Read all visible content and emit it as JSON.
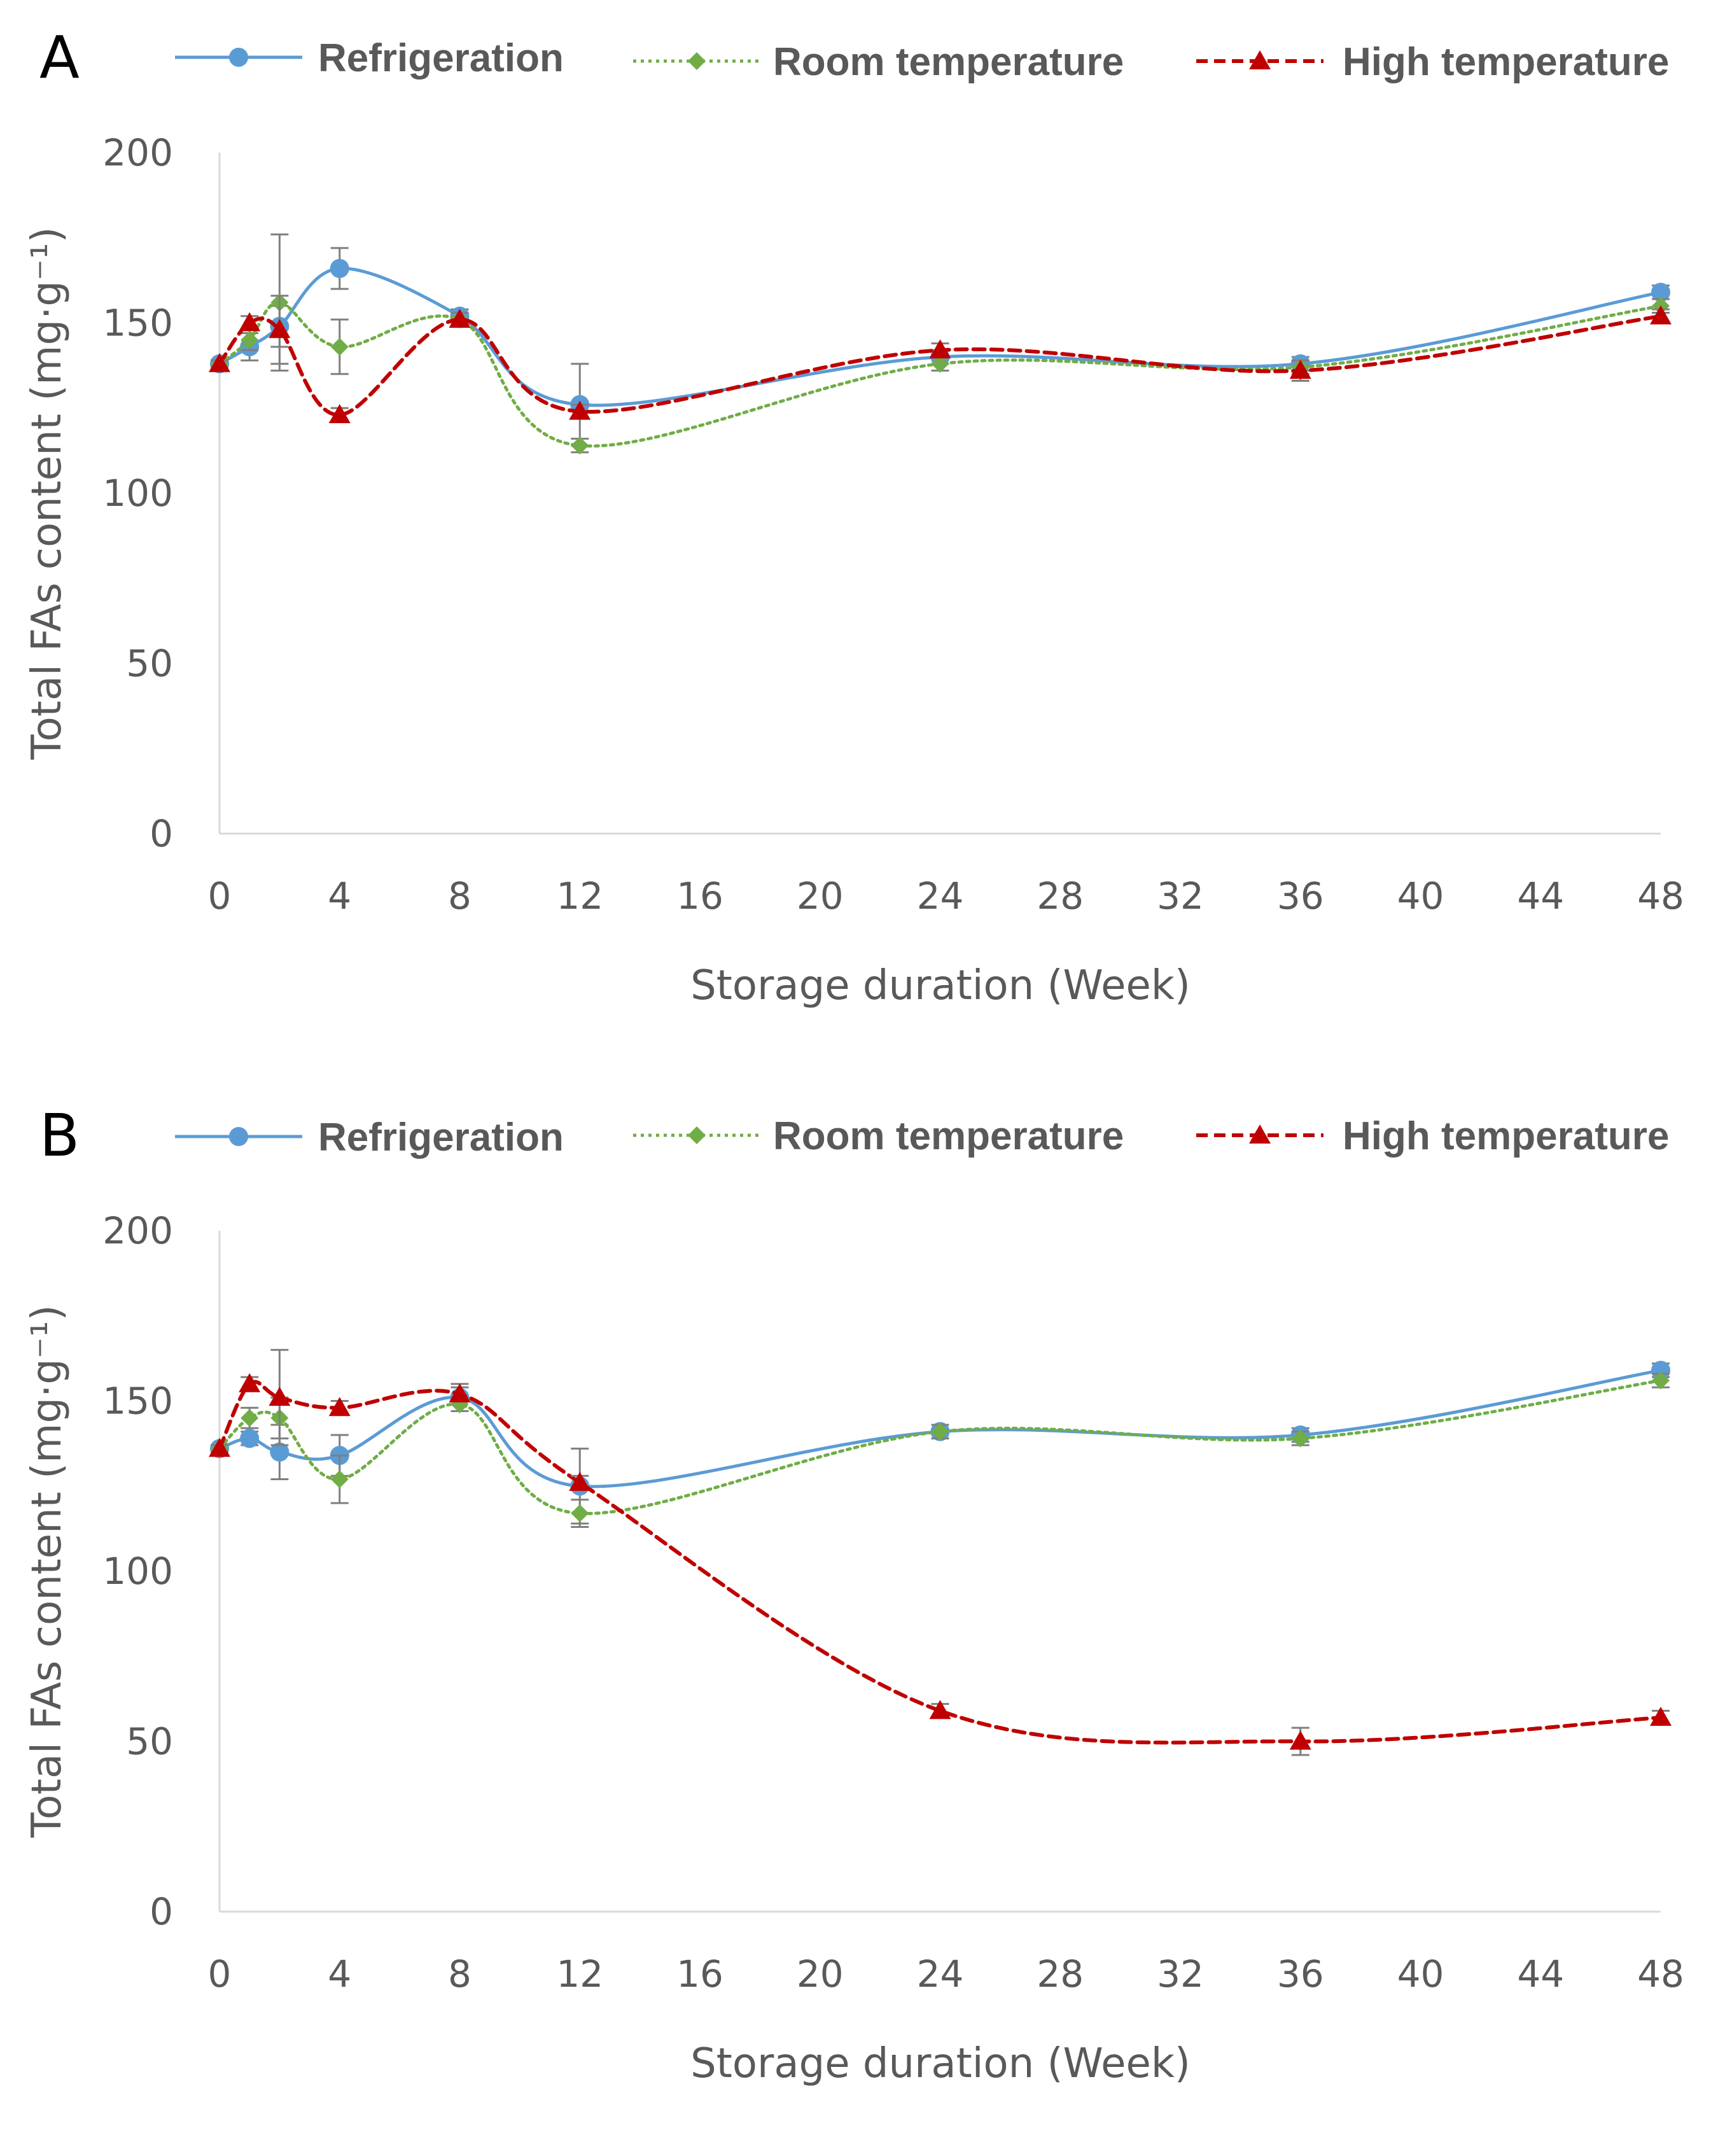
{
  "chart_data": [
    {
      "panel": "A",
      "type": "line",
      "xlabel": "Storage duration (Week)",
      "ylabel": "Total FAs content (mg·g⁻¹)",
      "xlim": [
        0,
        48
      ],
      "ylim": [
        0,
        200
      ],
      "xticks": [
        "0",
        "4",
        "8",
        "12",
        "16",
        "20",
        "24",
        "28",
        "32",
        "36",
        "40",
        "44",
        "48"
      ],
      "yticks": [
        "0",
        "50",
        "100",
        "150",
        "200"
      ],
      "grid": false,
      "legend": "top",
      "series": [
        {
          "name": "Refrigeration",
          "color": "#5b9bd5",
          "marker": "circle",
          "line": "solid",
          "x": [
            0,
            1,
            2,
            4,
            8,
            12,
            24,
            36,
            48
          ],
          "y": [
            138,
            143,
            149,
            166,
            152,
            126,
            140,
            138,
            159
          ],
          "err": [
            1,
            4,
            6,
            6,
            2,
            12,
            2,
            2,
            2
          ]
        },
        {
          "name": "Room temperature",
          "color": "#70ad47",
          "marker": "diamond",
          "line": "dotted",
          "x": [
            0,
            1,
            2,
            4,
            8,
            12,
            24,
            36,
            48
          ],
          "y": [
            138,
            145,
            156,
            143,
            151,
            114,
            138,
            137,
            155
          ],
          "err": [
            1,
            3,
            20,
            8,
            2,
            2,
            2,
            2,
            2
          ]
        },
        {
          "name": "High temperature",
          "color": "#c00000",
          "marker": "triangle",
          "line": "dashed",
          "x": [
            0,
            1,
            2,
            4,
            8,
            12,
            24,
            36,
            48
          ],
          "y": [
            138,
            150,
            148,
            123,
            151,
            124,
            142,
            136,
            152
          ],
          "err": [
            1,
            2,
            10,
            2,
            2,
            2,
            2,
            3,
            2
          ]
        }
      ]
    },
    {
      "panel": "B",
      "type": "line",
      "xlabel": "Storage duration (Week)",
      "ylabel": "Total FAs content (mg·g⁻¹)",
      "xlim": [
        0,
        48
      ],
      "ylim": [
        0,
        200
      ],
      "xticks": [
        "0",
        "4",
        "8",
        "12",
        "16",
        "20",
        "24",
        "28",
        "32",
        "36",
        "40",
        "44",
        "48"
      ],
      "yticks": [
        "0",
        "50",
        "100",
        "150",
        "200"
      ],
      "grid": false,
      "legend": "top",
      "series": [
        {
          "name": "Refrigeration",
          "color": "#5b9bd5",
          "marker": "circle",
          "line": "solid",
          "x": [
            0,
            1,
            2,
            4,
            8,
            12,
            24,
            36,
            48
          ],
          "y": [
            136,
            139,
            135,
            134,
            151,
            125,
            141,
            140,
            159
          ],
          "err": [
            1,
            2,
            8,
            6,
            4,
            11,
            2,
            2,
            2
          ]
        },
        {
          "name": "Room temperature",
          "color": "#70ad47",
          "marker": "diamond",
          "line": "dotted",
          "x": [
            0,
            1,
            2,
            4,
            8,
            12,
            24,
            36,
            48
          ],
          "y": [
            136,
            145,
            145,
            127,
            149,
            117,
            141,
            139,
            156
          ],
          "err": [
            1,
            3,
            6,
            7,
            2,
            4,
            2,
            2,
            2
          ]
        },
        {
          "name": "High temperature",
          "color": "#c00000",
          "marker": "triangle",
          "line": "dashed",
          "x": [
            0,
            1,
            2,
            4,
            8,
            12,
            24,
            36,
            48
          ],
          "y": [
            136,
            155,
            151,
            148,
            152,
            126,
            59,
            50,
            57
          ],
          "err": [
            1,
            2,
            14,
            2,
            2,
            2,
            2,
            4,
            2
          ]
        }
      ]
    }
  ]
}
